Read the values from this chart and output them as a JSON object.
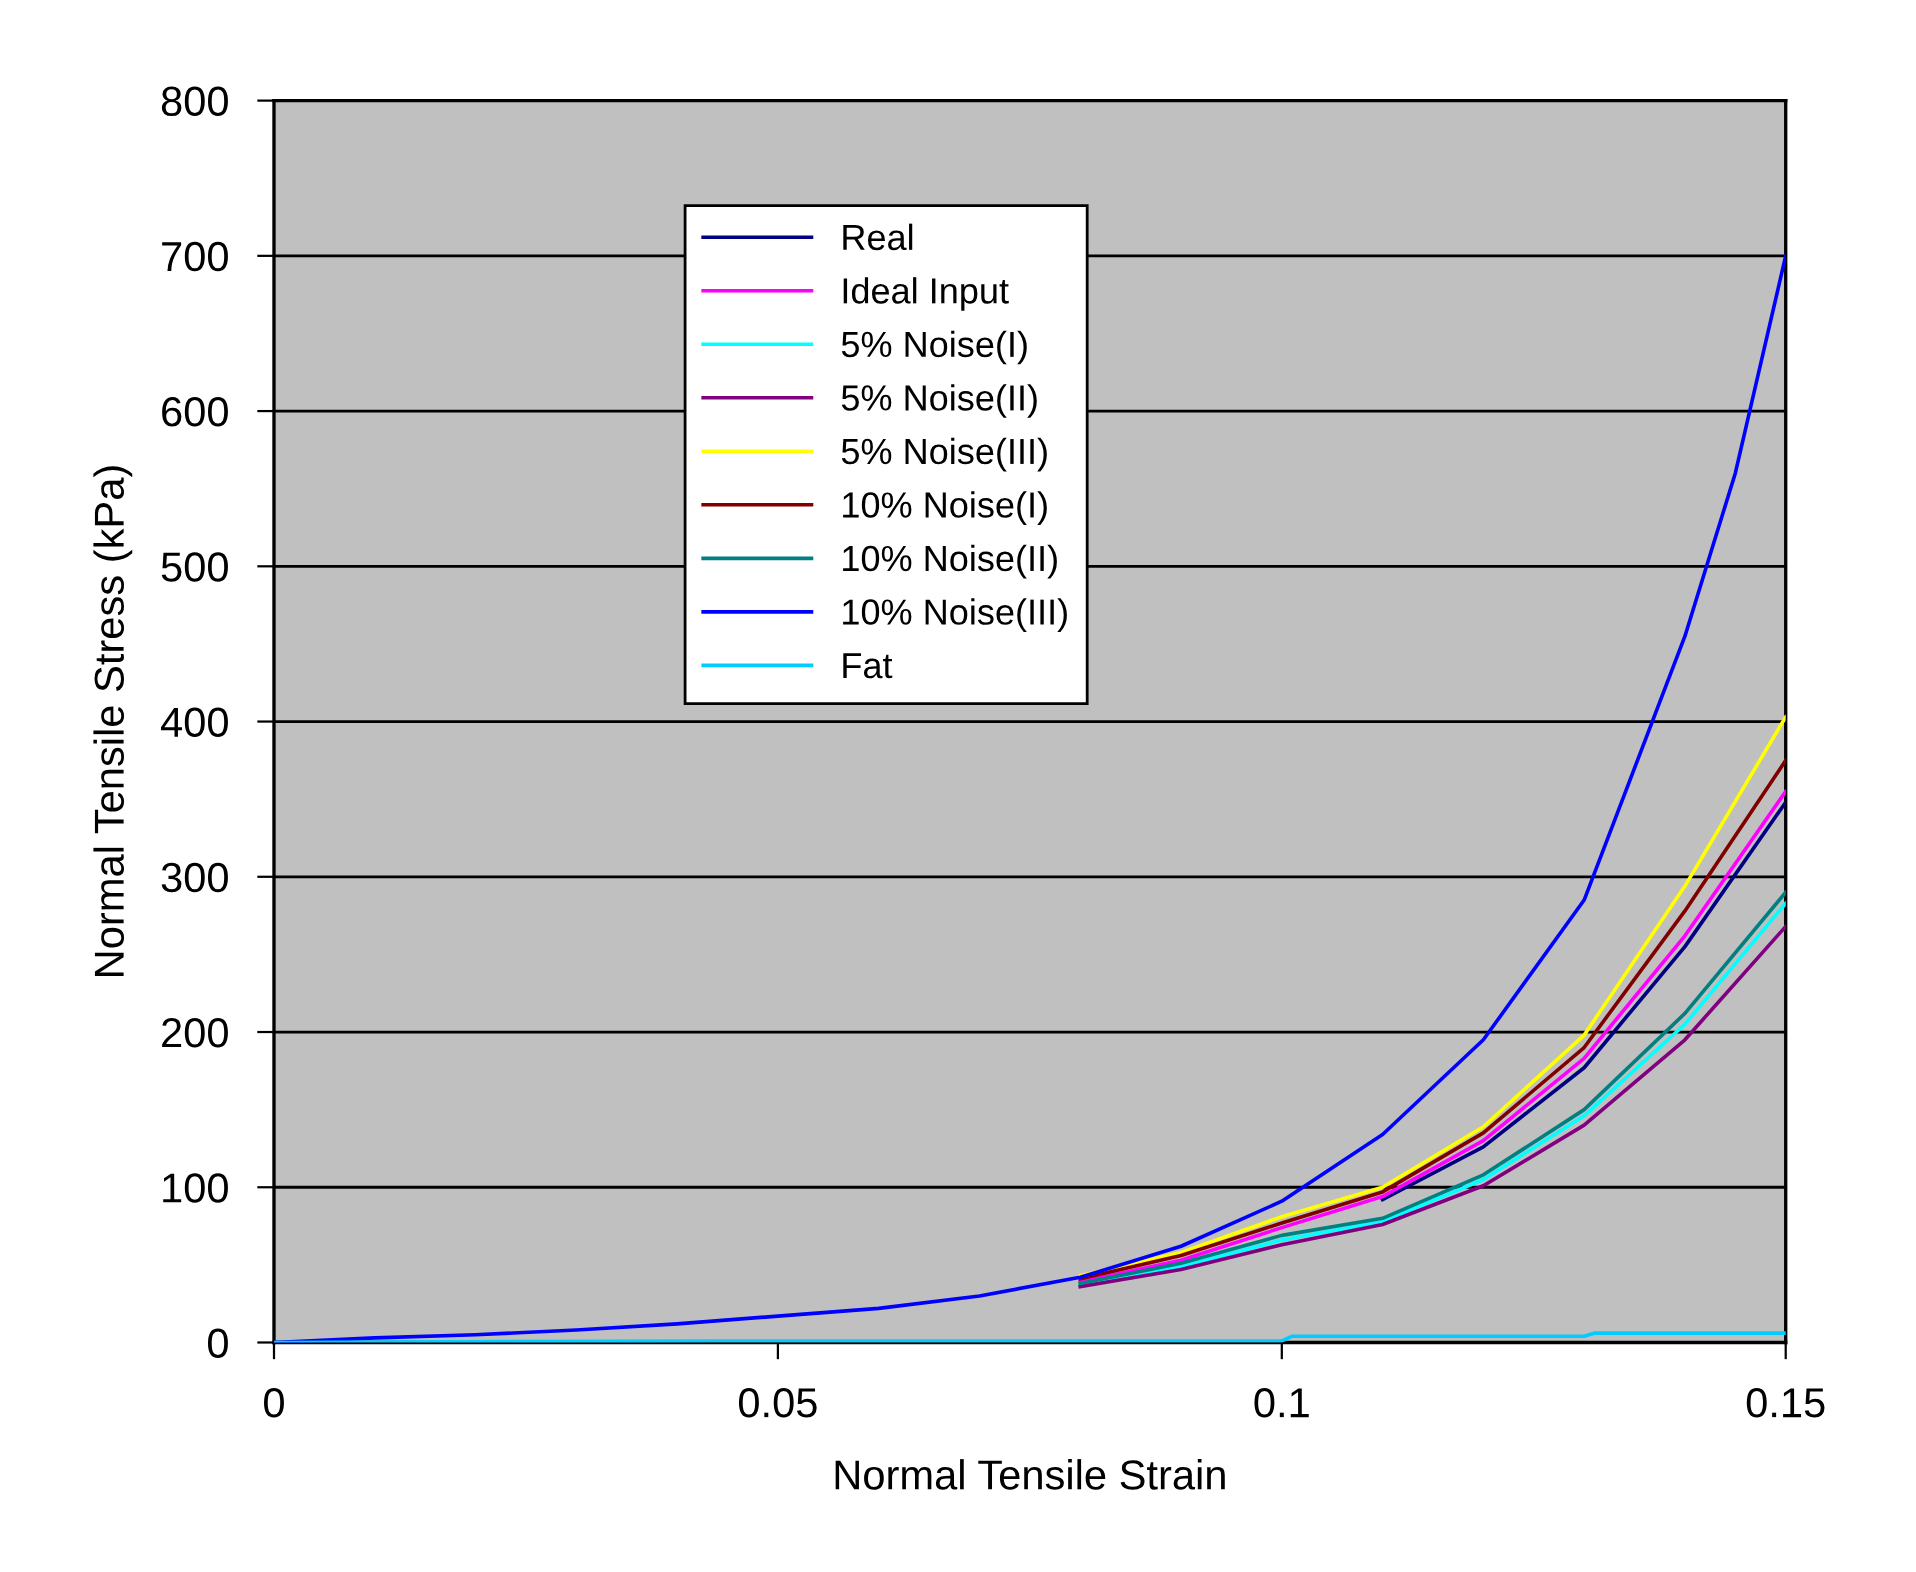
{
  "chart_data": {
    "type": "line",
    "xlabel": "Normal Tensile Strain",
    "ylabel": "Normal Tensile Stress (kPa)",
    "xlim": [
      0,
      0.15
    ],
    "xticks": [
      0,
      0.05,
      0.1,
      0.15
    ],
    "ylim": [
      0,
      800
    ],
    "yticks": [
      0,
      100,
      200,
      300,
      400,
      500,
      600,
      700,
      800
    ],
    "grid": "y",
    "legend": "top left",
    "marker": "none",
    "line_style": "solid",
    "x": [
      0.08,
      0.09,
      0.1,
      0.11,
      0.12,
      0.13,
      0.14,
      0.15
    ],
    "series": [
      {
        "name": "Real",
        "x": [
          0.11,
          0.12,
          0.13,
          0.14,
          0.15
        ],
        "color": "#000080",
        "values": [
          92,
          126,
          177,
          255,
          348
        ]
      },
      {
        "name": "Ideal Input",
        "color": "#ff00ff",
        "values": [
          39,
          53,
          74,
          94,
          130,
          183,
          262,
          355
        ]
      },
      {
        "name": "5% Noise(I)",
        "color": "#00ffff",
        "values": [
          37,
          49,
          66,
          78,
          105,
          146,
          205,
          283
        ]
      },
      {
        "name": "5% Noise(II)",
        "color": "#800080",
        "values": [
          36,
          47,
          63,
          76,
          101,
          140,
          195,
          268
        ]
      },
      {
        "name": "5% Noise(III)",
        "color": "#ffff00",
        "values": [
          43,
          58,
          81,
          100,
          139,
          198,
          294,
          403
        ]
      },
      {
        "name": "10% Noise(I)",
        "color": "#800000",
        "values": [
          41,
          56,
          77,
          97,
          135,
          190,
          278,
          375
        ]
      },
      {
        "name": "10% Noise(II)",
        "color": "#008080",
        "values": [
          38,
          51,
          69,
          80,
          108,
          150,
          212,
          290
        ]
      },
      {
        "name": "10% Noise(III)",
        "x": [
          0,
          0.01,
          0.02,
          0.03,
          0.04,
          0.05,
          0.06,
          0.07,
          0.08,
          0.09,
          0.1,
          0.11,
          0.12,
          0.13,
          0.14,
          0.145,
          0.15
        ],
        "color": "#0000ff",
        "values": [
          0,
          3,
          5,
          8,
          12,
          17,
          22,
          30,
          42,
          62,
          91,
          134,
          195,
          285,
          455,
          560,
          700
        ]
      },
      {
        "name": "Fat",
        "x": [
          0,
          0.044,
          0.1,
          0.101,
          0.13,
          0.131,
          0.15
        ],
        "color": "#00ccff",
        "values": [
          0,
          1,
          1,
          4,
          4,
          6,
          6
        ]
      }
    ]
  }
}
